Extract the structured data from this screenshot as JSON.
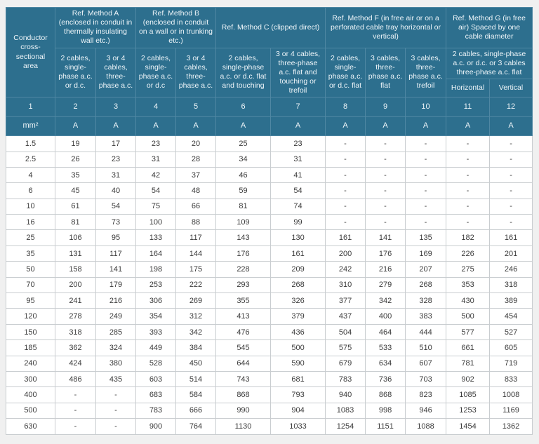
{
  "colors": {
    "header_bg": "#2d6f8e",
    "header_border": "#4f87a3",
    "header_text": "#eef5f9",
    "body_border": "#c9cdd0",
    "body_text": "#3b3b3b",
    "page_bg": "#f0f0f0"
  },
  "table": {
    "corner_header": "Conductor cross-sectional area",
    "groups": [
      {
        "title": "Ref. Method A (enclosed in conduit in thermally insulating wall etc.)",
        "subs": [
          "2 cables, single-phase a.c. or d.c.",
          "3 or 4 cables, three-phase a.c."
        ]
      },
      {
        "title": "Ref. Method B (enclosed in conduit on a wall or in trunking etc.)",
        "subs": [
          "2 cables, single-phase a.c. or d.c",
          "3 or 4 cables, three-phase a.c."
        ]
      },
      {
        "title": "Ref. Method C (clipped direct)",
        "subs": [
          "2 cables, single-phase a.c. or d.c. flat and touching",
          "3 or 4 cables, three-phase a.c. flat and touching or trefoil"
        ]
      },
      {
        "title": "Ref. Method F (in free air or on a perforated cable tray horizontal or vertical)",
        "subs": [
          "2 cables, single-phase a.c. or d.c. flat",
          "3 cables, three-phase a.c. flat",
          "3 cables, three-phase a.c. trefoil"
        ]
      },
      {
        "title": "Ref. Method G (in free air) Spaced by one cable diameter",
        "combined": "2 cables, single-phase a.c. or d.c. or 3 cables three-phase a.c. flat",
        "subs": [
          "Horizontal",
          "Vertical"
        ]
      }
    ],
    "column_numbers": [
      "1",
      "2",
      "3",
      "4",
      "5",
      "6",
      "7",
      "8",
      "9",
      "10",
      "11",
      "12"
    ],
    "units": [
      "mm²",
      "A",
      "A",
      "A",
      "A",
      "A",
      "A",
      "A",
      "A",
      "A",
      "A",
      "A"
    ],
    "rows": [
      [
        "1.5",
        "19",
        "17",
        "23",
        "20",
        "25",
        "23",
        "-",
        "-",
        "-",
        "-",
        "-"
      ],
      [
        "2.5",
        "26",
        "23",
        "31",
        "28",
        "34",
        "31",
        "-",
        "-",
        "-",
        "-",
        "-"
      ],
      [
        "4",
        "35",
        "31",
        "42",
        "37",
        "46",
        "41",
        "-",
        "-",
        "-",
        "-",
        "-"
      ],
      [
        "6",
        "45",
        "40",
        "54",
        "48",
        "59",
        "54",
        "-",
        "-",
        "-",
        "-",
        "-"
      ],
      [
        "10",
        "61",
        "54",
        "75",
        "66",
        "81",
        "74",
        "-",
        "-",
        "-",
        "-",
        "-"
      ],
      [
        "16",
        "81",
        "73",
        "100",
        "88",
        "109",
        "99",
        "-",
        "-",
        "-",
        "-",
        "-"
      ],
      [
        "25",
        "106",
        "95",
        "133",
        "117",
        "143",
        "130",
        "161",
        "141",
        "135",
        "182",
        "161"
      ],
      [
        "35",
        "131",
        "117",
        "164",
        "144",
        "176",
        "161",
        "200",
        "176",
        "169",
        "226",
        "201"
      ],
      [
        "50",
        "158",
        "141",
        "198",
        "175",
        "228",
        "209",
        "242",
        "216",
        "207",
        "275",
        "246"
      ],
      [
        "70",
        "200",
        "179",
        "253",
        "222",
        "293",
        "268",
        "310",
        "279",
        "268",
        "353",
        "318"
      ],
      [
        "95",
        "241",
        "216",
        "306",
        "269",
        "355",
        "326",
        "377",
        "342",
        "328",
        "430",
        "389"
      ],
      [
        "120",
        "278",
        "249",
        "354",
        "312",
        "413",
        "379",
        "437",
        "400",
        "383",
        "500",
        "454"
      ],
      [
        "150",
        "318",
        "285",
        "393",
        "342",
        "476",
        "436",
        "504",
        "464",
        "444",
        "577",
        "527"
      ],
      [
        "185",
        "362",
        "324",
        "449",
        "384",
        "545",
        "500",
        "575",
        "533",
        "510",
        "661",
        "605"
      ],
      [
        "240",
        "424",
        "380",
        "528",
        "450",
        "644",
        "590",
        "679",
        "634",
        "607",
        "781",
        "719"
      ],
      [
        "300",
        "486",
        "435",
        "603",
        "514",
        "743",
        "681",
        "783",
        "736",
        "703",
        "902",
        "833"
      ],
      [
        "400",
        "-",
        "-",
        "683",
        "584",
        "868",
        "793",
        "940",
        "868",
        "823",
        "1085",
        "1008"
      ],
      [
        "500",
        "-",
        "-",
        "783",
        "666",
        "990",
        "904",
        "1083",
        "998",
        "946",
        "1253",
        "1169"
      ],
      [
        "630",
        "-",
        "-",
        "900",
        "764",
        "1130",
        "1033",
        "1254",
        "1151",
        "1088",
        "1454",
        "1362"
      ]
    ]
  }
}
